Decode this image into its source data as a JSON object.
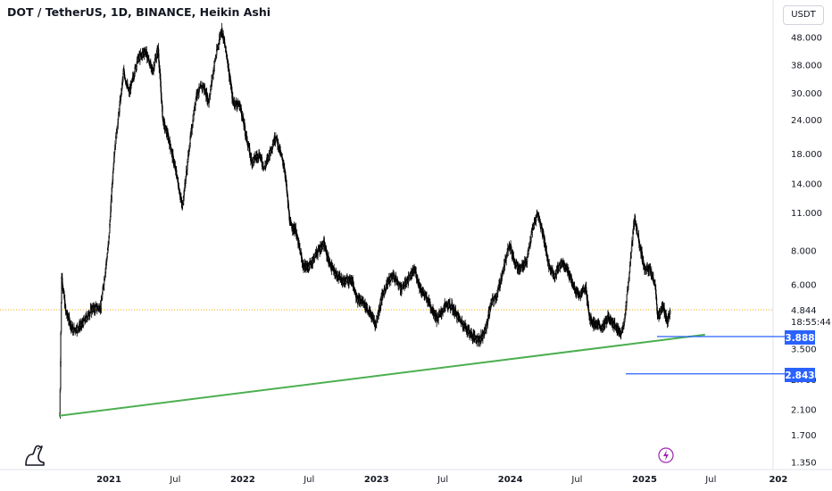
{
  "header": {
    "title": "DOT / TetherUS, 1D, BINANCE, Heikin Ashi",
    "currency_button": "USDT"
  },
  "price_badges": {
    "last_price": "4.844",
    "countdown": "18:55:44",
    "level_upper": "3.888",
    "level_lower": "2.843"
  },
  "colors": {
    "candles": "#000000",
    "trendline": "#4caf50",
    "level_lines": "#2962ff",
    "last_price_line": "#f7a600",
    "badge_bg": "#2962ff"
  },
  "icons": [
    "tradingview-dino-icon",
    "lightning-icon"
  ],
  "chart_data": {
    "type": "candlestick",
    "title": "DOT / TetherUS, 1D, BINANCE, Heikin Ashi",
    "y_scale": "log",
    "ylim": [
      1.3,
      56
    ],
    "y_ticks": [
      "48.000",
      "38.000",
      "30.000",
      "24.000",
      "18.000",
      "14.000",
      "11.000",
      "8.000",
      "6.000",
      "3.500",
      "2.700",
      "2.100",
      "1.700",
      "1.350"
    ],
    "x_ticks": [
      "2021",
      "Jul",
      "2022",
      "Jul",
      "2023",
      "Jul",
      "2024",
      "Jul",
      "2025",
      "Jul",
      "202"
    ],
    "grid": false,
    "last_price": 4.844,
    "horizontal_levels": [
      3.888,
      2.843
    ],
    "trendline": {
      "start": [
        "2020-08-20",
        2.0
      ],
      "end": [
        "2025-06-15",
        3.95
      ]
    },
    "price_path": [
      [
        "2020-08-20",
        2.0
      ],
      [
        "2020-08-25",
        6.5
      ],
      [
        "2020-09-05",
        4.8
      ],
      [
        "2020-09-25",
        4.1
      ],
      [
        "2020-10-20",
        4.3
      ],
      [
        "2020-11-15",
        4.9
      ],
      [
        "2020-12-10",
        5.0
      ],
      [
        "2020-12-31",
        8.5
      ],
      [
        "2021-01-15",
        18.0
      ],
      [
        "2021-02-10",
        36.0
      ],
      [
        "2021-02-25",
        30.0
      ],
      [
        "2021-03-20",
        40.0
      ],
      [
        "2021-04-10",
        43.0
      ],
      [
        "2021-04-30",
        36.0
      ],
      [
        "2021-05-15",
        44.0
      ],
      [
        "2021-05-28",
        24.0
      ],
      [
        "2021-06-15",
        20.0
      ],
      [
        "2021-07-05",
        15.0
      ],
      [
        "2021-07-20",
        11.5
      ],
      [
        "2021-08-10",
        20.0
      ],
      [
        "2021-08-28",
        30.0
      ],
      [
        "2021-09-15",
        32.0
      ],
      [
        "2021-09-30",
        28.0
      ],
      [
        "2021-10-15",
        38.0
      ],
      [
        "2021-11-04",
        52.0
      ],
      [
        "2021-11-20",
        40.0
      ],
      [
        "2021-12-05",
        28.0
      ],
      [
        "2021-12-25",
        27.0
      ],
      [
        "2022-01-10",
        21.0
      ],
      [
        "2022-01-25",
        17.0
      ],
      [
        "2022-02-15",
        18.0
      ],
      [
        "2022-03-01",
        16.0
      ],
      [
        "2022-03-20",
        19.0
      ],
      [
        "2022-04-01",
        21.0
      ],
      [
        "2022-04-25",
        16.0
      ],
      [
        "2022-05-10",
        10.0
      ],
      [
        "2022-05-25",
        9.5
      ],
      [
        "2022-06-15",
        7.0
      ],
      [
        "2022-07-01",
        7.0
      ],
      [
        "2022-07-20",
        7.8
      ],
      [
        "2022-08-10",
        8.5
      ],
      [
        "2022-08-25",
        7.2
      ],
      [
        "2022-09-10",
        6.6
      ],
      [
        "2022-10-01",
        6.2
      ],
      [
        "2022-10-25",
        6.3
      ],
      [
        "2022-11-10",
        5.3
      ],
      [
        "2022-11-25",
        5.2
      ],
      [
        "2022-12-15",
        4.7
      ],
      [
        "2022-12-30",
        4.3
      ],
      [
        "2023-01-15",
        5.4
      ],
      [
        "2023-02-01",
        6.2
      ],
      [
        "2023-02-15",
        6.5
      ],
      [
        "2023-03-10",
        5.8
      ],
      [
        "2023-03-25",
        6.2
      ],
      [
        "2023-04-15",
        6.8
      ],
      [
        "2023-05-01",
        5.8
      ],
      [
        "2023-05-20",
        5.3
      ],
      [
        "2023-06-15",
        4.5
      ],
      [
        "2023-07-10",
        5.1
      ],
      [
        "2023-07-25",
        5.0
      ],
      [
        "2023-08-15",
        4.5
      ],
      [
        "2023-09-01",
        4.2
      ],
      [
        "2023-09-20",
        3.9
      ],
      [
        "2023-10-10",
        3.8
      ],
      [
        "2023-10-25",
        4.1
      ],
      [
        "2023-11-10",
        5.2
      ],
      [
        "2023-11-25",
        5.5
      ],
      [
        "2023-12-15",
        7.0
      ],
      [
        "2023-12-28",
        8.5
      ],
      [
        "2024-01-10",
        7.5
      ],
      [
        "2024-01-25",
        6.8
      ],
      [
        "2024-02-15",
        7.4
      ],
      [
        "2024-03-01",
        9.5
      ],
      [
        "2024-03-15",
        11.0
      ],
      [
        "2024-04-01",
        9.0
      ],
      [
        "2024-04-15",
        7.0
      ],
      [
        "2024-05-01",
        6.5
      ],
      [
        "2024-05-20",
        7.3
      ],
      [
        "2024-06-01",
        7.0
      ],
      [
        "2024-06-20",
        6.0
      ],
      [
        "2024-07-05",
        5.5
      ],
      [
        "2024-07-25",
        5.8
      ],
      [
        "2024-08-05",
        4.5
      ],
      [
        "2024-08-20",
        4.3
      ],
      [
        "2024-09-10",
        4.2
      ],
      [
        "2024-09-25",
        4.6
      ],
      [
        "2024-10-10",
        4.3
      ],
      [
        "2024-10-25",
        4.0
      ],
      [
        "2024-11-05",
        4.2
      ],
      [
        "2024-11-20",
        6.5
      ],
      [
        "2024-12-04",
        10.5
      ],
      [
        "2024-12-15",
        9.0
      ],
      [
        "2024-12-30",
        7.0
      ],
      [
        "2025-01-15",
        6.8
      ],
      [
        "2025-01-30",
        6.0
      ],
      [
        "2025-02-05",
        4.6
      ],
      [
        "2025-02-20",
        5.0
      ],
      [
        "2025-03-05",
        4.4
      ],
      [
        "2025-03-12",
        4.844
      ]
    ]
  }
}
